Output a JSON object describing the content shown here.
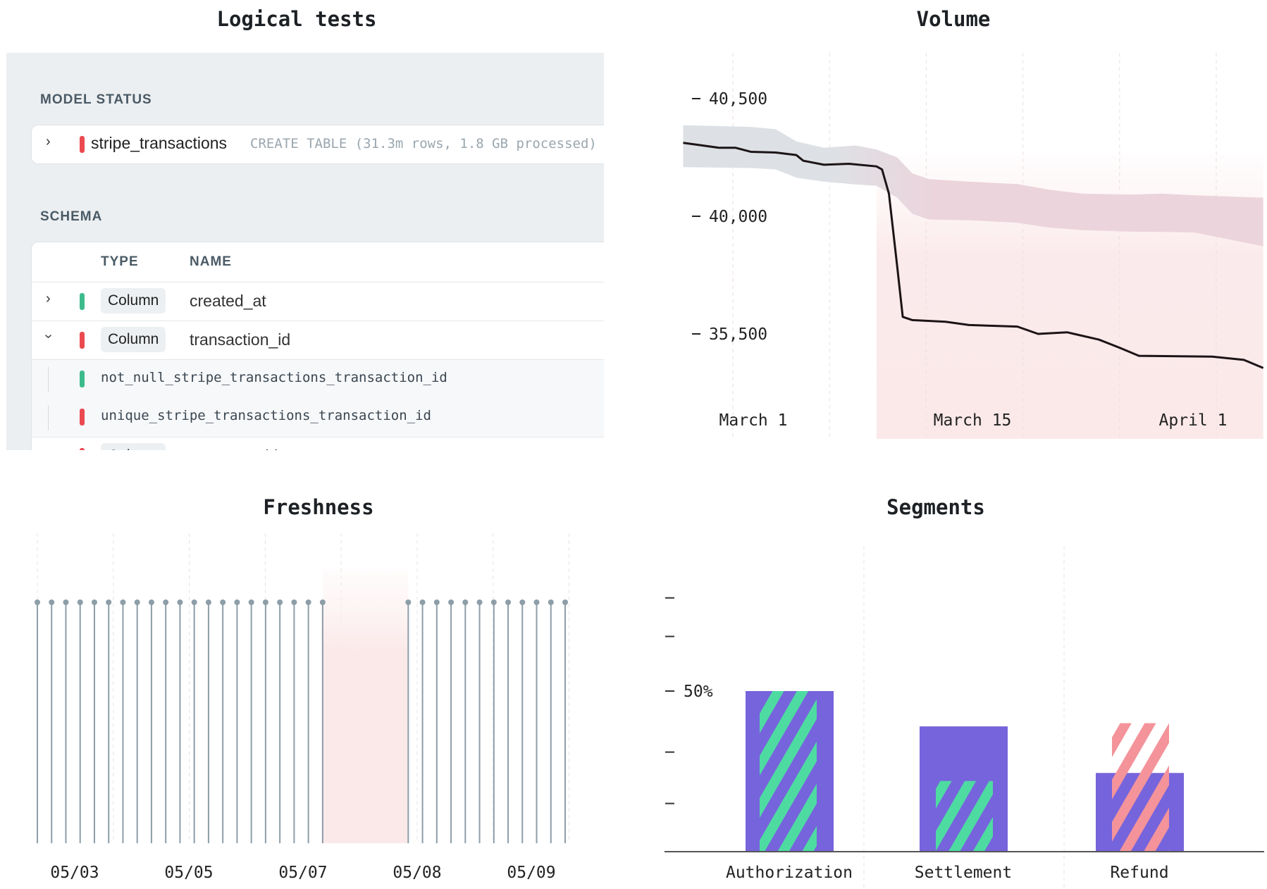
{
  "titles": {
    "logical": "Logical tests",
    "volume": "Volume",
    "freshness": "Freshness",
    "segments": "Segments"
  },
  "colors": {
    "fail": "#ea4a50",
    "pass": "#3dbb8c",
    "purple": "#7664dc",
    "hatch_green": "#4edba2",
    "hatch_red": "#f4939a"
  },
  "logical": {
    "model_status_label": "MODEL STATUS",
    "model": {
      "name": "stripe_transactions",
      "status": "fail",
      "detail": "CREATE TABLE (31.3m rows, 1.8 GB processed)"
    },
    "schema_label": "SCHEMA",
    "headers": {
      "type": "TYPE",
      "name": "NAME"
    },
    "rows": [
      {
        "type": "Column",
        "name": "created_at",
        "status": "pass",
        "expanded": false
      },
      {
        "type": "Column",
        "name": "transaction_id",
        "status": "fail",
        "expanded": true,
        "tests": [
          {
            "name": "not_null_stripe_transactions_transaction_id",
            "status": "pass"
          },
          {
            "name": "unique_stripe_transactions_transaction_id",
            "status": "fail"
          }
        ]
      },
      {
        "type": "Column",
        "name": "customer_id",
        "status": "fail",
        "expanded": false
      }
    ]
  },
  "chart_data": [
    {
      "type": "line",
      "title": "Volume",
      "x_unit": "days since March 1",
      "xlim": [
        -3.6,
        38.4
      ],
      "x_ticks": [
        {
          "day": 1.5,
          "label": "March 1"
        },
        {
          "day": 17.3,
          "label": "March 15"
        },
        {
          "day": 33.3,
          "label": "April 1"
        }
      ],
      "y_ticks": [
        40500,
        40000,
        35500
      ],
      "y_tick_labels": [
        "40,500",
        "40,000",
        "35,500"
      ],
      "anomaly_start_day": 10.4,
      "series": {
        "name": "volume",
        "x": [
          -3.6,
          -2.2,
          -1,
          0.2,
          1.3,
          3.1,
          4.6,
          5.1,
          6.6,
          8.4,
          10.4,
          10.8,
          11.3,
          11.9,
          12.3,
          13,
          15.4,
          17.1,
          20.6,
          22.1,
          24.2,
          26.5,
          28,
          29.4,
          34.7,
          37,
          38.4
        ],
        "y": [
          40312,
          40301,
          40291,
          40291,
          40274,
          40271,
          40260,
          40236,
          40219,
          40223,
          40212,
          40199,
          40096,
          38076,
          36152,
          36028,
          35966,
          35841,
          35779,
          35500,
          35562,
          35283,
          34972,
          34662,
          34631,
          34507,
          34197
        ]
      },
      "band": {
        "x": [
          -3.6,
          1.3,
          3.1,
          4.6,
          6.6,
          8.9,
          10.4,
          11.9,
          13,
          14.2,
          17.1,
          20.6,
          22.9,
          25.3,
          28.8,
          31.1,
          33.4,
          38.4
        ],
        "upper": [
          40387,
          40380,
          40370,
          40318,
          40291,
          40301,
          40284,
          40250,
          40182,
          40158,
          40147,
          40137,
          40113,
          40096,
          40092,
          40096,
          40089,
          40079
        ],
        "lower": [
          40209,
          40205,
          40199,
          40164,
          40147,
          40135,
          40130,
          40079,
          40010,
          39876,
          39845,
          39752,
          39566,
          39472,
          39410,
          39400,
          39379,
          38852
        ]
      }
    },
    {
      "type": "scatter",
      "title": "Freshness",
      "x_unit": "hours",
      "updates": [
        0,
        6,
        12,
        18,
        24,
        30,
        36,
        42,
        48,
        54,
        60,
        66,
        72,
        78,
        84,
        90,
        96,
        102,
        108,
        114,
        120,
        156,
        162,
        168,
        174,
        180,
        186,
        192,
        198,
        204,
        210,
        216,
        222
      ],
      "anomaly_window": [
        120,
        156
      ],
      "x_tick_labels": [
        "05/03",
        "05/05",
        "05/07",
        "05/08",
        "05/09"
      ]
    },
    {
      "type": "bar",
      "title": "Segments",
      "categories": [
        "Authorization",
        "Settlement",
        "Refund"
      ],
      "series": [
        {
          "name": "baseline",
          "values": [
            50,
            39,
            24.5
          ]
        },
        {
          "name": "current",
          "values": [
            50,
            22,
            40
          ]
        }
      ],
      "current_status": [
        "pass",
        "pass",
        "fail"
      ],
      "y_ticks": [
        15,
        31,
        50,
        67,
        79
      ],
      "y_tick_labels": [
        "",
        "",
        "50%",
        "",
        ""
      ],
      "ylim": [
        0,
        100
      ]
    }
  ]
}
